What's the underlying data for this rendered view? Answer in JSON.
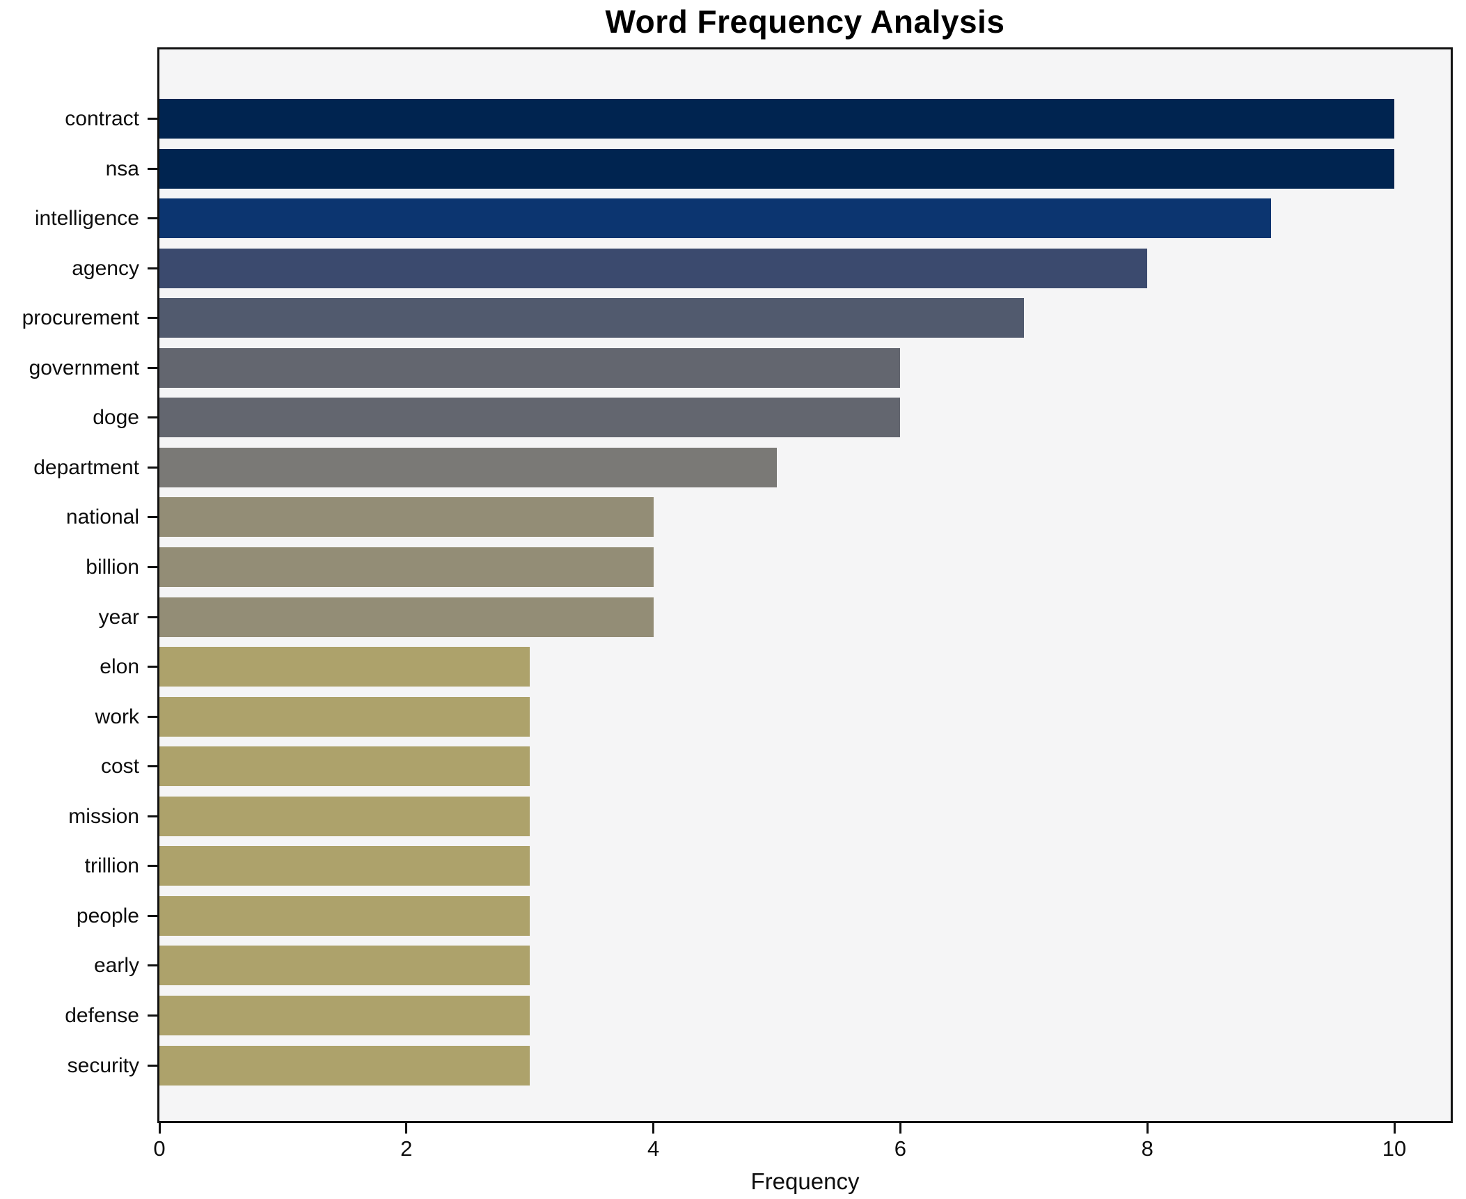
{
  "chart_data": {
    "type": "bar",
    "orientation": "horizontal",
    "title": "Word Frequency Analysis",
    "xlabel": "Frequency",
    "ylabel": "",
    "categories": [
      "contract",
      "nsa",
      "intelligence",
      "agency",
      "procurement",
      "government",
      "doge",
      "department",
      "national",
      "billion",
      "year",
      "elon",
      "work",
      "cost",
      "mission",
      "trillion",
      "people",
      "early",
      "defense",
      "security"
    ],
    "values": [
      10,
      10,
      9,
      8,
      7,
      6,
      6,
      5,
      4,
      4,
      4,
      3,
      3,
      3,
      3,
      3,
      3,
      3,
      3,
      3
    ],
    "bar_colors": [
      "#002450",
      "#002450",
      "#0c3570",
      "#3b4a6e",
      "#515a6e",
      "#63666f",
      "#63666f",
      "#7a7976",
      "#938d76",
      "#938d76",
      "#938d76",
      "#ada26b",
      "#ada26b",
      "#ada26b",
      "#ada26b",
      "#ada26b",
      "#ada26b",
      "#ada26b",
      "#ada26b",
      "#ada26b"
    ],
    "xlim": [
      0,
      10.5
    ],
    "x_ticks": [
      0,
      2,
      4,
      6,
      8,
      10
    ],
    "grid": false,
    "legend": null,
    "plot_bg": "#f5f5f6",
    "figure_bg": "#ffffff",
    "spine_color": "#111111"
  }
}
